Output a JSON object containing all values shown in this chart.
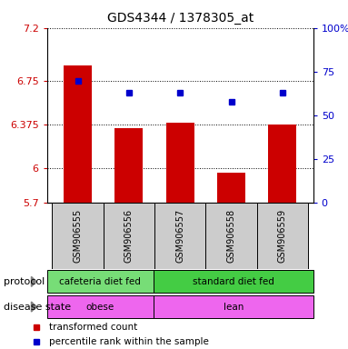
{
  "title": "GDS4344 / 1378305_at",
  "samples": [
    "GSM906555",
    "GSM906556",
    "GSM906557",
    "GSM906558",
    "GSM906559"
  ],
  "bar_values": [
    6.88,
    6.34,
    6.385,
    5.96,
    6.375
  ],
  "percentile_values": [
    70,
    63,
    63,
    58,
    63
  ],
  "ylim_left": [
    5.7,
    7.2
  ],
  "ylim_right": [
    0,
    100
  ],
  "yticks_left": [
    5.7,
    6.0,
    6.375,
    6.75,
    7.2
  ],
  "yticks_right": [
    0,
    25,
    50,
    75,
    100
  ],
  "ytick_labels_left": [
    "5.7",
    "6",
    "6.375",
    "6.75",
    "7.2"
  ],
  "ytick_labels_right": [
    "0",
    "25",
    "50",
    "75",
    "100%"
  ],
  "bar_color": "#cc0000",
  "dot_color": "#0000cc",
  "protocol_label": "protocol",
  "disease_label": "disease state",
  "protocol_group1_label": "cafeteria diet fed",
  "protocol_group1_color": "#77dd77",
  "protocol_group2_label": "standard diet fed",
  "protocol_group2_color": "#44cc44",
  "disease_group1_label": "obese",
  "disease_group1_color": "#ee66ee",
  "disease_group2_label": "lean",
  "disease_group2_color": "#ee66ee",
  "legend_red": "transformed count",
  "legend_blue": "percentile rank within the sample",
  "split_index": 2,
  "n_samples": 5
}
